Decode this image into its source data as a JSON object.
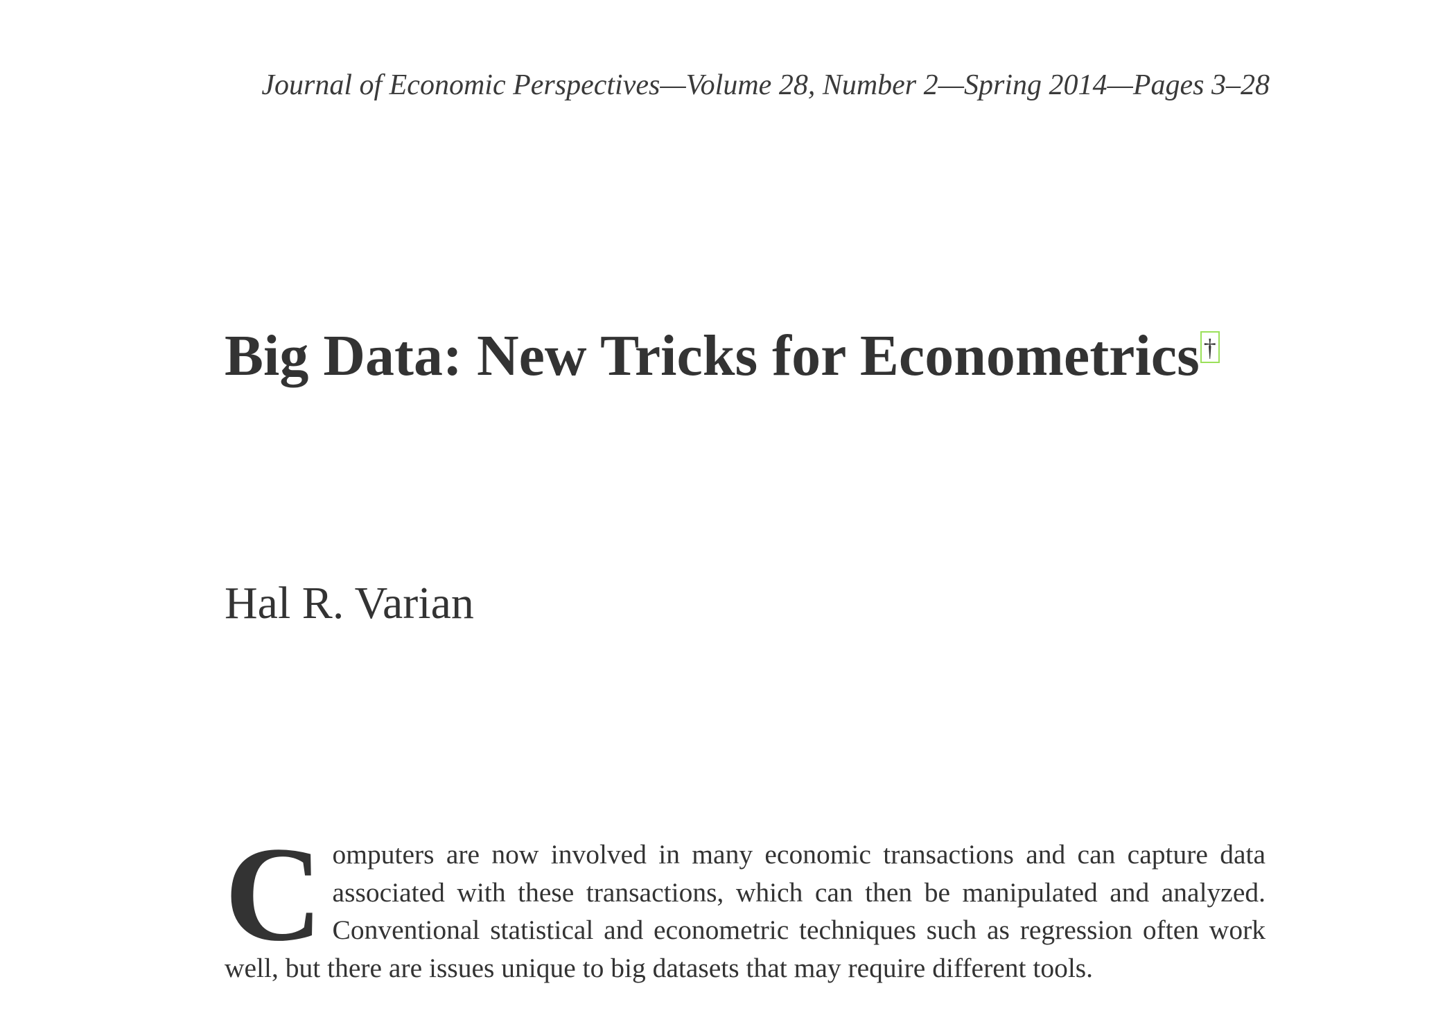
{
  "header": {
    "running_head": "Journal of Economic Perspectives—Volume 28, Number 2—Spring 2014—Pages 3–28"
  },
  "article": {
    "title": "Big Data: New Tricks for Econometrics",
    "title_footnote_mark": "†",
    "author": "Hal R. Varian",
    "drop_cap": "C",
    "first_paragraph_rest": "omputers are now involved in many economic transactions and can capture data associated with these transactions, which can then be manipulated and analyzed. Conventional statistical and econometric techniques such as regression often work well, but there are issues unique to big datasets that may require different tools."
  }
}
